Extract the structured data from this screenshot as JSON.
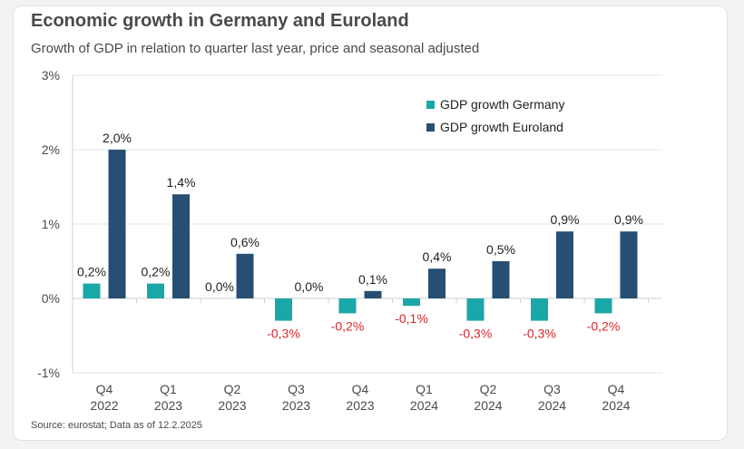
{
  "header": {
    "title": "Economic growth in Germany and Euroland",
    "subtitle": "Growth of GDP in relation to quarter last year, price and seasonal adjusted"
  },
  "footer": {
    "source": "Source: eurostat; Data as of 12.2.2025"
  },
  "colors": {
    "germany": "#1aa7a8",
    "euroland": "#274f73",
    "negative_label": "#d9262b",
    "text": "#4a4a4a",
    "grid": "#e6e6e6"
  },
  "chart_data": {
    "type": "bar",
    "title": "Economic growth in Germany and Euroland",
    "subtitle": "Growth of GDP in relation to quarter last year, price and seasonal adjusted",
    "categories": [
      [
        "Q4",
        "2022"
      ],
      [
        "Q1",
        "2023"
      ],
      [
        "Q2",
        "2023"
      ],
      [
        "Q3",
        "2023"
      ],
      [
        "Q4",
        "2023"
      ],
      [
        "Q1",
        "2024"
      ],
      [
        "Q2",
        "2024"
      ],
      [
        "Q3",
        "2024"
      ],
      [
        "Q4",
        "2024"
      ]
    ],
    "series": [
      {
        "name": "GDP growth Germany",
        "values": [
          0.2,
          0.2,
          0.0,
          -0.3,
          -0.2,
          -0.1,
          -0.3,
          -0.3,
          -0.2
        ],
        "labels": [
          "0,2%",
          "0,2%",
          "0,0%",
          "-0,3%",
          "-0,2%",
          "-0,1%",
          "-0,3%",
          "-0,3%",
          "-0,2%"
        ]
      },
      {
        "name": "GDP growth Euroland",
        "values": [
          2.0,
          1.4,
          0.6,
          0.0,
          0.1,
          0.4,
          0.5,
          0.9,
          0.9
        ],
        "labels": [
          "2,0%",
          "1,4%",
          "0,6%",
          "0,0%",
          "0,1%",
          "0,4%",
          "0,5%",
          "0,9%",
          "0,9%"
        ]
      }
    ],
    "ylim": [
      -1,
      3
    ],
    "yticks": [
      3,
      2,
      1,
      0,
      -1
    ],
    "ytick_labels": [
      "3%",
      "2%",
      "1%",
      "0%",
      "-1%"
    ],
    "legend_position": "top-right",
    "grid": "horizontal"
  }
}
